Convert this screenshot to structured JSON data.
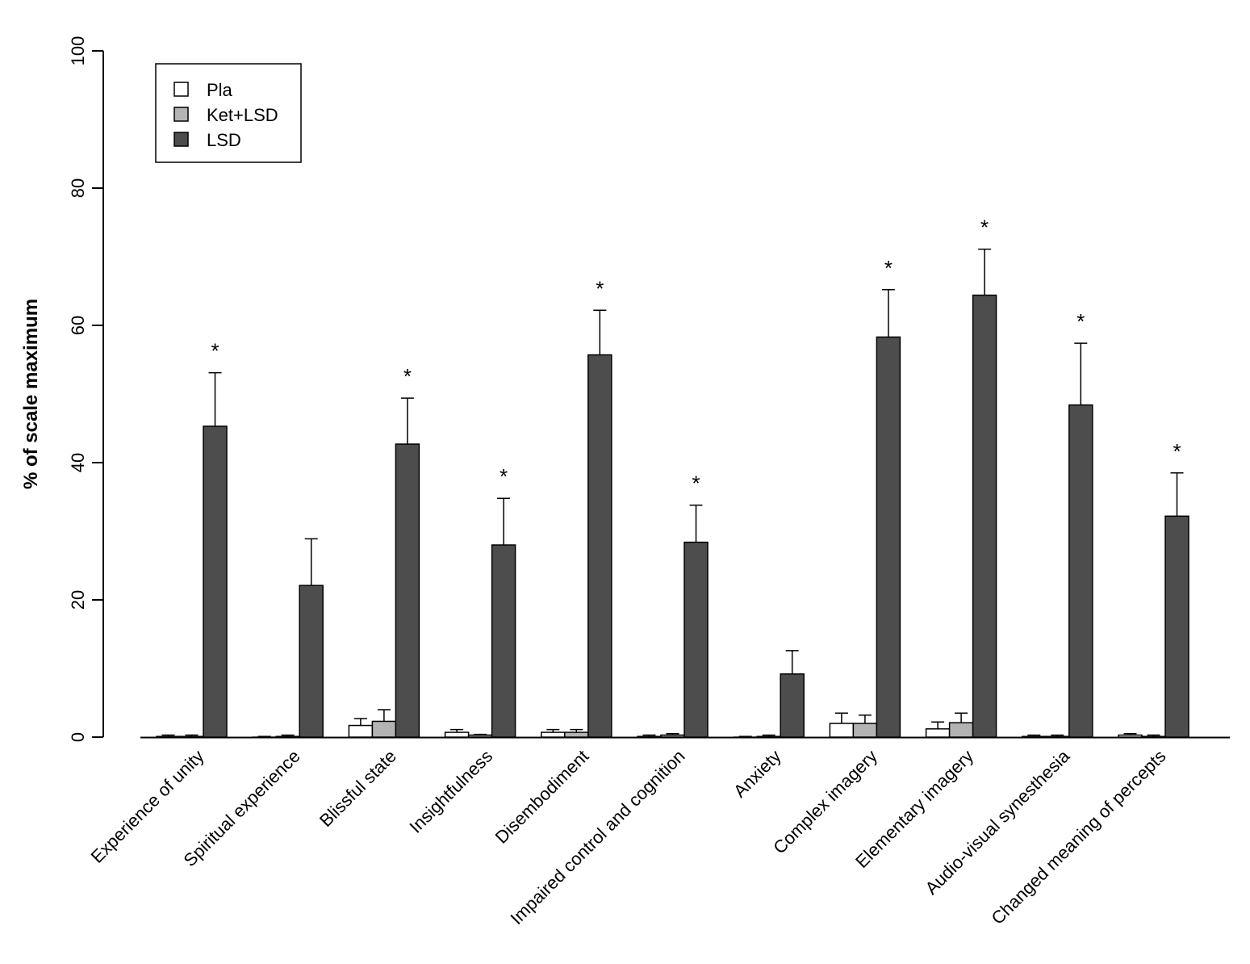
{
  "chart_data": {
    "type": "bar",
    "ylabel": "% of scale maximum",
    "xlabel": "",
    "ylim": [
      0,
      100
    ],
    "yticks": [
      0,
      20,
      40,
      60,
      80,
      100
    ],
    "legend_position": "top-left",
    "categories": [
      "Experience of unity",
      "Spiritual experience",
      "Blissful state",
      "Insightfulness",
      "Disembodiment",
      "Impaired control and cognition",
      "Anxiety",
      "Complex imagery",
      "Elementary imagery",
      "Audio-visual synesthesia",
      "Changed meaning of percepts"
    ],
    "series": [
      {
        "name": "Pla",
        "color": "#ffffff",
        "values": [
          0.1,
          0.0,
          1.7,
          0.7,
          0.7,
          0.1,
          0.0,
          2.0,
          1.2,
          0.1,
          0.3
        ],
        "errors": [
          0.2,
          0.1,
          1.0,
          0.4,
          0.4,
          0.2,
          0.1,
          1.5,
          1.0,
          0.2,
          0.2
        ]
      },
      {
        "name": "Ket+LSD",
        "color": "#b3b3b3",
        "values": [
          0.1,
          0.1,
          2.3,
          0.3,
          0.7,
          0.3,
          0.1,
          2.0,
          2.1,
          0.1,
          0.1
        ],
        "errors": [
          0.2,
          0.2,
          1.7,
          0.1,
          0.4,
          0.2,
          0.2,
          1.2,
          1.4,
          0.2,
          0.2
        ]
      },
      {
        "name": "LSD",
        "color": "#4d4d4d",
        "values": [
          45.3,
          22.1,
          42.7,
          28.0,
          55.7,
          28.4,
          9.2,
          58.3,
          64.4,
          48.4,
          32.2
        ],
        "errors": [
          7.8,
          6.8,
          6.7,
          6.8,
          6.5,
          5.4,
          3.4,
          6.9,
          6.7,
          9.0,
          6.3
        ]
      }
    ],
    "significance": [
      "*",
      "",
      "*",
      "*",
      "*",
      "*",
      "",
      "*",
      "*",
      "*",
      "*"
    ]
  }
}
